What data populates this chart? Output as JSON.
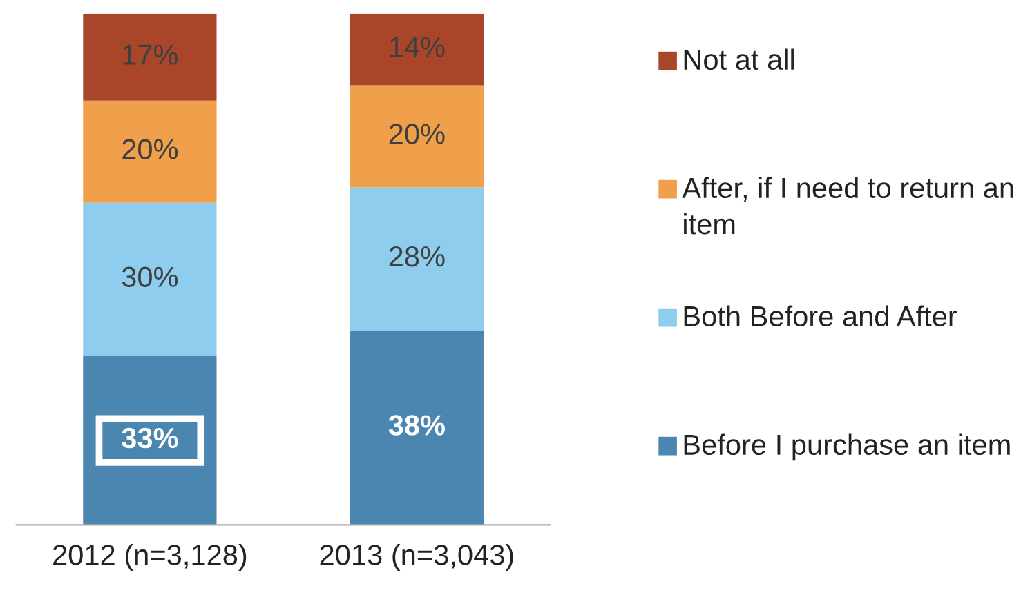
{
  "chart_data": {
    "type": "bar",
    "stacked": true,
    "legend": "right",
    "grid": false,
    "categories": [
      "2012 (n=3,128)",
      "2013 (n=3,043)"
    ],
    "series": [
      {
        "name": "Before I purchase an item",
        "color": "#4a86b0",
        "values": [
          33,
          38
        ],
        "value_labels": [
          "33%",
          "38%"
        ]
      },
      {
        "name": "Both Before and After",
        "color": "#8ecdee",
        "values": [
          30,
          28
        ],
        "value_labels": [
          "30%",
          "28%"
        ]
      },
      {
        "name": "After, if I need to return an item",
        "color": "#f0a04a",
        "values": [
          20,
          20
        ],
        "value_labels": [
          "20%",
          "20%"
        ]
      },
      {
        "name": "Not at all",
        "color": "#a9462a",
        "values": [
          17,
          14
        ],
        "value_labels": [
          "17%",
          "14%"
        ]
      }
    ]
  }
}
